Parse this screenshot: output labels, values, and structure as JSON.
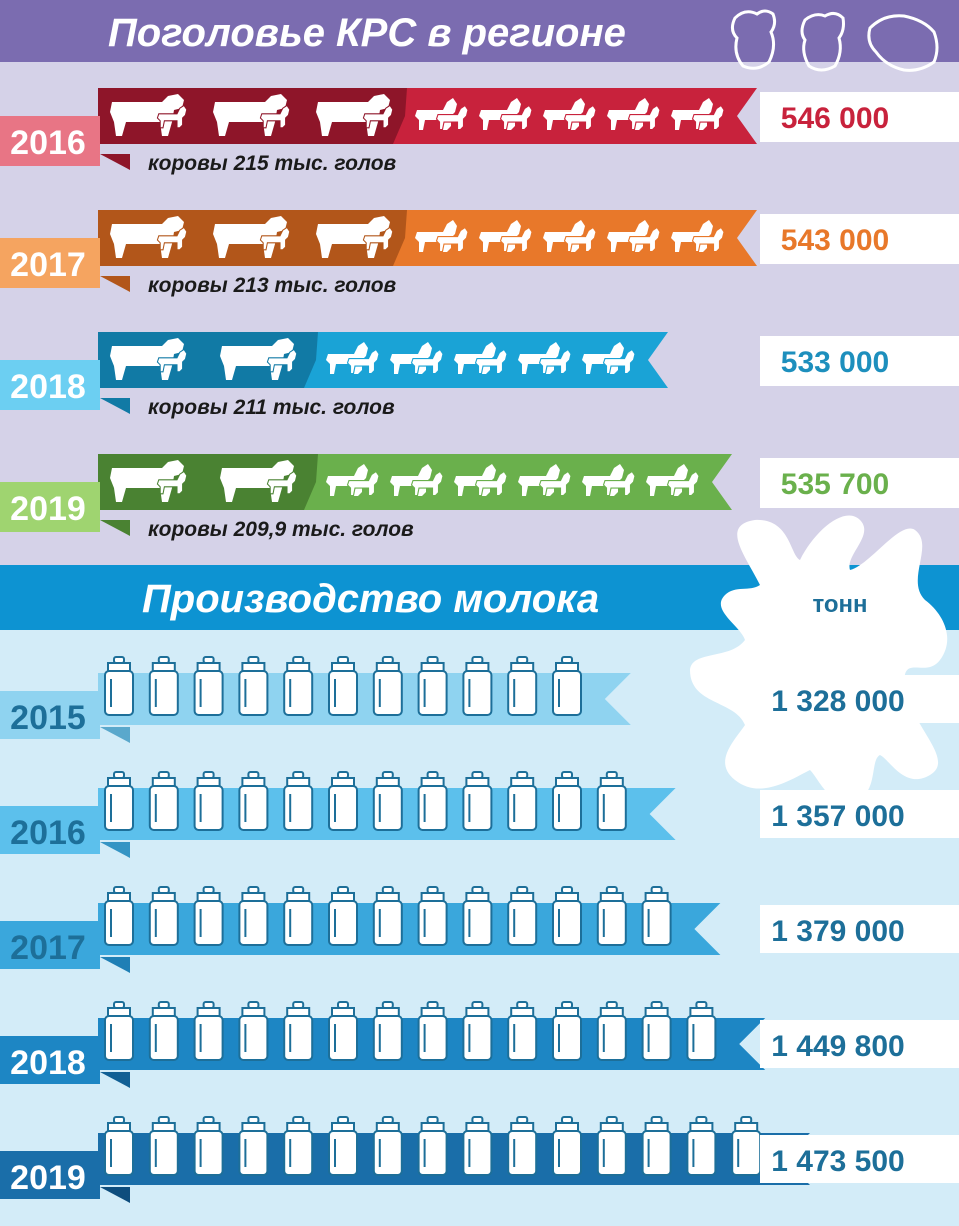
{
  "cattle_section": {
    "title": "Поголовье КРС в регионе",
    "header_color": "#7b6cb0",
    "background_color": "#d5d2e8"
  },
  "milk_section": {
    "title": "Производство молока",
    "unit": "тонн",
    "header_color": "#0d93d2",
    "background_color": "#d3ecf8"
  },
  "chart_data": [
    {
      "type": "bar",
      "title": "Поголовье КРС в регионе",
      "categories": [
        "2016",
        "2017",
        "2018",
        "2019"
      ],
      "values": [
        546000,
        543000,
        533000,
        535700
      ],
      "value_labels": [
        "546 000",
        "543 000",
        "533 000",
        "535 700"
      ],
      "cow_labels": [
        "коровы 215 тыс. голов",
        "коровы 213 тыс. голов",
        "коровы 211 тыс. голов",
        "коровы 209,9 тыс. голов"
      ],
      "cow_icon_counts": [
        3,
        3,
        2,
        2
      ],
      "goat_icon_counts": [
        5,
        5,
        5,
        6
      ],
      "colors": [
        "#c8223c",
        "#e8782a",
        "#1aa3d6",
        "#6ab04c"
      ],
      "light_colors": [
        "#e87585",
        "#f5a460",
        "#6ccff2",
        "#9fd470"
      ],
      "dark_colors": [
        "#8e1529",
        "#b2561a",
        "#117aa5",
        "#4a8232"
      ],
      "value_colors": [
        "#c8223c",
        "#e8782a",
        "#1d8fbd",
        "#6ab04c"
      ]
    },
    {
      "type": "bar",
      "title": "Производство молока",
      "unit": "тонн",
      "categories": [
        "2015",
        "2016",
        "2017",
        "2018",
        "2019"
      ],
      "values": [
        1328000,
        1357000,
        1379000,
        1449800,
        1473500
      ],
      "value_labels": [
        "1 328 000",
        "1 357 000",
        "1 379 000",
        "1 449 800",
        "1 473 500"
      ],
      "can_icon_counts": [
        11,
        12,
        13,
        14,
        15
      ],
      "colors": [
        "#8fd3f0",
        "#5cc0ec",
        "#3aa7dc",
        "#1d86c4",
        "#1a6ea9"
      ],
      "year_colors": [
        "#1d6f99",
        "#1d6f99",
        "#1d6f99",
        "#ffffff",
        "#ffffff"
      ],
      "dark_colors": [
        "#5aa8cc",
        "#3494c4",
        "#1f7fb5",
        "#115f94",
        "#0e4d7d"
      ],
      "value_color": "#1d6f99"
    }
  ]
}
